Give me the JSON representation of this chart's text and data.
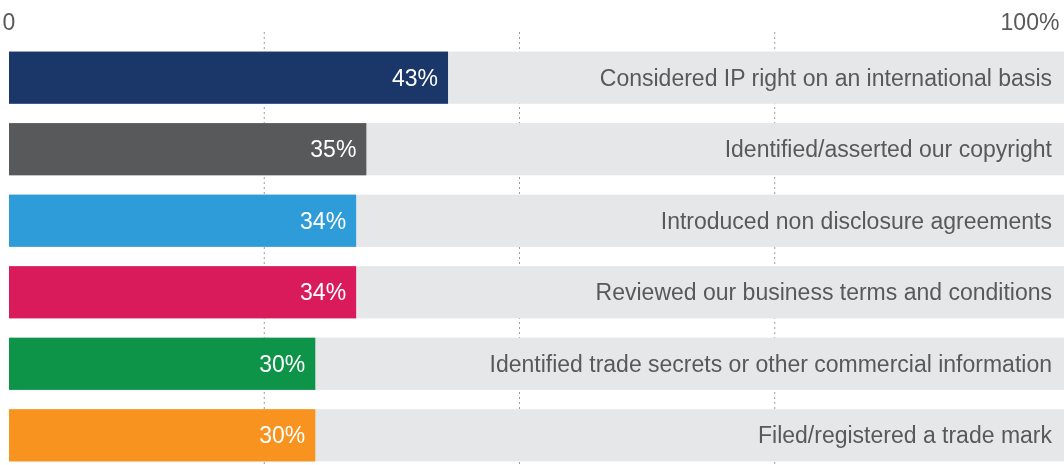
{
  "chart_data": {
    "type": "bar",
    "orientation": "horizontal",
    "categories": [
      "Considered IP right on an international basis",
      "Identified/asserted our copyright",
      "Introduced non disclosure agreements",
      "Reviewed our business terms and conditions",
      "Identified trade secrets or other commercial information",
      "Filed/registered a trade mark"
    ],
    "values": [
      43,
      35,
      34,
      34,
      30,
      30
    ],
    "colors": [
      "#1b3668",
      "#58595b",
      "#2e9cd8",
      "#d91b5c",
      "#0d9448",
      "#f7931e"
    ],
    "value_labels": [
      "43%",
      "35%",
      "34%",
      "34%",
      "30%",
      "30%"
    ],
    "xlim": [
      0,
      100
    ],
    "xticks": [
      0,
      {
        "value": 25,
        "label": null
      },
      {
        "value": 50,
        "label": null
      },
      {
        "value": 75,
        "label": null
      },
      {
        "value": 100,
        "label": "100%"
      }
    ],
    "grid": "x"
  }
}
